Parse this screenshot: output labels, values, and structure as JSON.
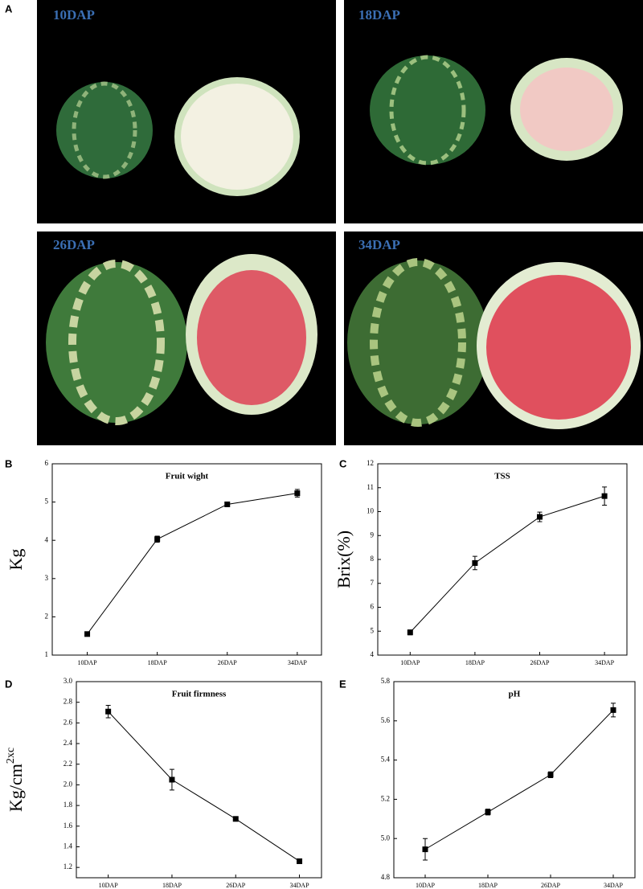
{
  "photo_panel": {
    "label": "A",
    "images": [
      "10DAP",
      "18DAP",
      "26DAP",
      "34DAP"
    ]
  },
  "chart_data": [
    {
      "type": "line",
      "panel": "B",
      "title": "Fruit wight",
      "ylabel": "Kg",
      "categories": [
        "10DAP",
        "18DAP",
        "26DAP",
        "34DAP"
      ],
      "values": [
        1.55,
        4.03,
        4.94,
        5.23
      ],
      "errors": [
        0.03,
        0.08,
        0.03,
        0.1
      ],
      "color": "#000000",
      "ylim": [
        1,
        6
      ],
      "yticks": [
        1,
        2,
        3,
        4,
        5,
        6
      ]
    },
    {
      "type": "line",
      "panel": "C",
      "title": "TSS",
      "ylabel": "Brix(%)",
      "categories": [
        "10DAP",
        "18DAP",
        "26DAP",
        "34DAP"
      ],
      "values": [
        4.95,
        7.85,
        9.78,
        10.65
      ],
      "errors": [
        0.1,
        0.28,
        0.2,
        0.38
      ],
      "color": "#000000",
      "ylim": [
        4,
        12
      ],
      "yticks": [
        4,
        5,
        6,
        7,
        8,
        9,
        10,
        11,
        12
      ]
    },
    {
      "type": "line",
      "panel": "D",
      "title": "Fruit firmness",
      "ylabel": "Kg/cm",
      "ylabel_sup": "2xc",
      "categories": [
        "10DAP",
        "18DAP",
        "26DAP",
        "34DAP"
      ],
      "values": [
        2.71,
        2.05,
        1.67,
        1.26
      ],
      "errors": [
        0.06,
        0.1,
        0.01,
        0.01
      ],
      "color": "#000000",
      "ylim": [
        1.1,
        3.0
      ],
      "yticks": [
        1.2,
        1.4,
        1.6,
        1.8,
        {
          "value": 2,
          "label": "2.0"
        },
        2.2,
        2.4,
        2.6,
        2.8,
        {
          "value": 3,
          "label": "3.0"
        }
      ]
    },
    {
      "type": "line",
      "panel": "E",
      "title": "pH",
      "categories": [
        "10DAP",
        "18DAP",
        "26DAP",
        "34DAP"
      ],
      "values": [
        4.945,
        5.135,
        5.325,
        5.655
      ],
      "errors": [
        0.055,
        0.015,
        0.015,
        0.035
      ],
      "color": "#000000",
      "ylim": [
        4.8,
        5.8
      ],
      "yticks": [
        4.8,
        {
          "value": 5,
          "label": "5.0"
        },
        5.2,
        5.4,
        5.6,
        5.8
      ]
    }
  ]
}
